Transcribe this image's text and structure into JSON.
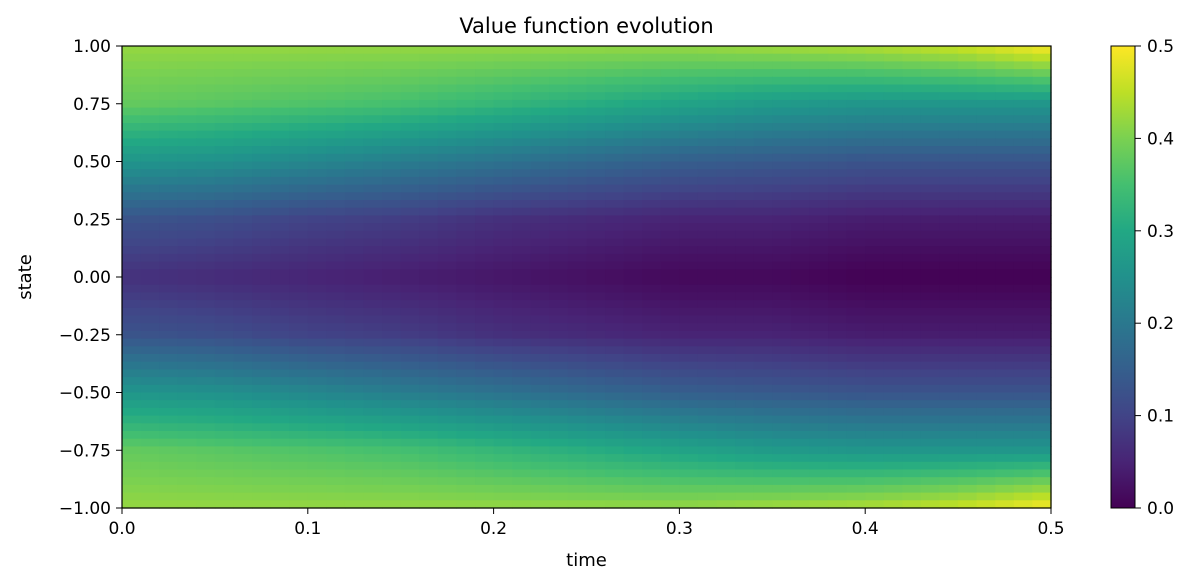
{
  "chart_data": {
    "type": "heatmap",
    "title": "Value function evolution",
    "xlabel": "time",
    "ylabel": "state",
    "xlim": [
      0.0,
      0.5
    ],
    "ylim": [
      -1.0,
      1.0
    ],
    "x_ticks": [
      "0.0",
      "0.1",
      "0.2",
      "0.3",
      "0.4",
      "0.5"
    ],
    "y_ticks": [
      "1.00",
      "0.75",
      "0.50",
      "0.25",
      "0.00",
      "−0.25",
      "−0.50",
      "−0.75",
      "−1.00"
    ],
    "colorbar": {
      "colormap": "viridis",
      "range": [
        0.0,
        0.5
      ],
      "ticks": [
        "0.5",
        "0.4",
        "0.3",
        "0.2",
        "0.1",
        "0.0"
      ]
    },
    "grid": false,
    "x": [
      0.0,
      0.05,
      0.1,
      0.15,
      0.2,
      0.25,
      0.3,
      0.35,
      0.4,
      0.45,
      0.5
    ],
    "y": [
      1.0,
      0.75,
      0.5,
      0.25,
      0.0,
      -0.25,
      -0.5,
      -0.75,
      -1.0
    ],
    "values": [
      [
        0.42,
        0.42,
        0.42,
        0.42,
        0.42,
        0.42,
        0.42,
        0.43,
        0.44,
        0.46,
        0.5
      ],
      [
        0.38,
        0.37,
        0.36,
        0.35,
        0.33,
        0.31,
        0.29,
        0.27,
        0.26,
        0.26,
        0.26
      ],
      [
        0.26,
        0.25,
        0.23,
        0.21,
        0.19,
        0.17,
        0.15,
        0.14,
        0.13,
        0.13,
        0.13
      ],
      [
        0.13,
        0.12,
        0.1,
        0.09,
        0.07,
        0.06,
        0.05,
        0.05,
        0.04,
        0.04,
        0.04
      ],
      [
        0.07,
        0.06,
        0.05,
        0.04,
        0.03,
        0.02,
        0.01,
        0.01,
        0.0,
        0.0,
        0.0
      ],
      [
        0.13,
        0.12,
        0.1,
        0.09,
        0.07,
        0.06,
        0.05,
        0.05,
        0.04,
        0.04,
        0.04
      ],
      [
        0.26,
        0.25,
        0.23,
        0.21,
        0.19,
        0.17,
        0.15,
        0.14,
        0.13,
        0.13,
        0.13
      ],
      [
        0.38,
        0.37,
        0.36,
        0.35,
        0.33,
        0.31,
        0.29,
        0.27,
        0.26,
        0.26,
        0.26
      ],
      [
        0.42,
        0.42,
        0.42,
        0.42,
        0.42,
        0.42,
        0.42,
        0.43,
        0.44,
        0.46,
        0.5
      ]
    ]
  }
}
